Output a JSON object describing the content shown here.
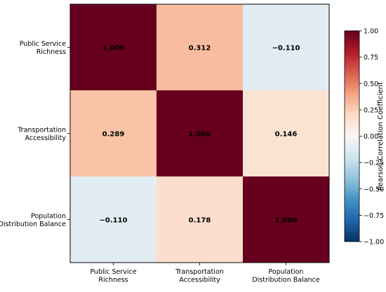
{
  "chart_data": {
    "type": "heatmap",
    "x_labels": [
      [
        "Public Service",
        "Richness"
      ],
      [
        "Transportation",
        "Accessibility"
      ],
      [
        "Population",
        "Distribution Balance"
      ]
    ],
    "y_labels": [
      [
        "Public Service",
        "Richness"
      ],
      [
        "Transportation",
        "Accessibility"
      ],
      [
        "Population",
        "Distribution Balance"
      ]
    ],
    "values": [
      [
        1.0,
        0.312,
        -0.11
      ],
      [
        0.289,
        1.0,
        0.146
      ],
      [
        -0.11,
        0.178,
        1.0
      ]
    ],
    "cell_labels": [
      [
        "1.000",
        "0.312",
        "−0.110"
      ],
      [
        "0.289",
        "1.000",
        "0.146"
      ],
      [
        "−0.110",
        "0.178",
        "1.000"
      ]
    ],
    "colorbar": {
      "label": "Pearson Correlation Coefficient",
      "range": [
        -1.0,
        1.0
      ],
      "ticks": [
        1.0,
        0.75,
        0.5,
        0.25,
        0.0,
        -0.25,
        -0.5,
        -0.75,
        -1.0
      ],
      "tick_labels": [
        "1.00",
        "0.75",
        "0.50",
        "0.25",
        "0.00",
        "−0.25",
        "−0.50",
        "−0.75",
        "−1.00"
      ],
      "colormap": "RdBu_r",
      "colors": [
        "#053061",
        "#2166ac",
        "#4393c3",
        "#92c5de",
        "#d1e5f0",
        "#f7f7f7",
        "#fddbc7",
        "#f4a582",
        "#d6604d",
        "#b2182b",
        "#67001f"
      ]
    }
  }
}
